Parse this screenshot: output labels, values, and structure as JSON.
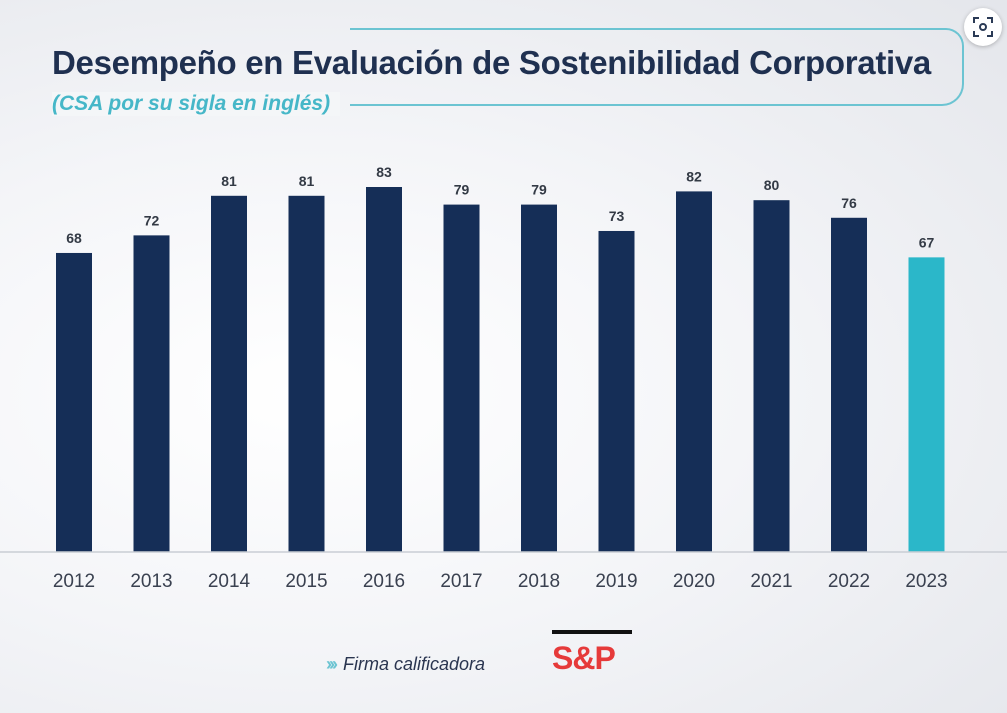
{
  "title": "Desempeño en Evaluación de Sostenibilidad Corporativa",
  "subtitle": "(CSA por su sigla en inglés)",
  "footer": {
    "label": "Firma calificadora",
    "logo_text": "S&P"
  },
  "expand_icon": "expand-icon",
  "colors": {
    "bar": "#152e57",
    "highlight": "#2bb7c9",
    "title": "#1f3050",
    "subtitle": "#46b7c8",
    "accent": "#6cc4d2",
    "logo": "#e63a3a"
  },
  "chart_data": {
    "type": "bar",
    "title": "Desempeño en Evaluación de Sostenibilidad Corporativa",
    "subtitle": "(CSA por su sigla en inglés)",
    "categories": [
      "2012",
      "2013",
      "2014",
      "2015",
      "2016",
      "2017",
      "2018",
      "2019",
      "2020",
      "2021",
      "2022",
      "2023"
    ],
    "values": [
      68,
      72,
      81,
      81,
      83,
      79,
      79,
      73,
      82,
      80,
      76,
      67
    ],
    "highlight_category": "2023",
    "xlabel": "",
    "ylabel": "",
    "ylim": [
      0,
      83
    ],
    "grid": false,
    "legend": "none"
  }
}
